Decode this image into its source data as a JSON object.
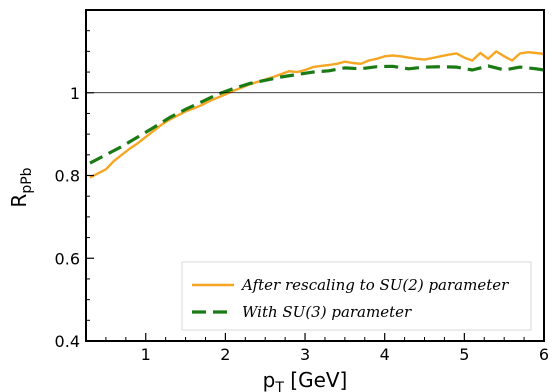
{
  "chart_data": {
    "type": "line",
    "xlabel": "p",
    "xlabel_sub": "T",
    "xlabel_unit": " [GeV]",
    "ylabel": "R",
    "ylabel_sub": "pPb",
    "xlim": [
      0.25,
      6.0
    ],
    "ylim": [
      0.4,
      1.2
    ],
    "x_ticks": [
      1,
      2,
      3,
      4,
      5,
      6
    ],
    "y_ticks": [
      0.4,
      0.6,
      0.8,
      1
    ],
    "y_tick_labels": [
      "0.4",
      "0.6",
      "0.8",
      "1"
    ],
    "reference_line": 1.0,
    "grid": false,
    "legend_position": "bottom-right",
    "series": [
      {
        "name": "After rescaling to SU(2) parameter",
        "color": "#f5a623",
        "style": "solid",
        "x": [
          0.3,
          0.4,
          0.5,
          0.6,
          0.7,
          0.8,
          0.9,
          1.0,
          1.1,
          1.2,
          1.3,
          1.4,
          1.5,
          1.6,
          1.7,
          1.8,
          1.9,
          2.0,
          2.1,
          2.2,
          2.3,
          2.4,
          2.5,
          2.6,
          2.7,
          2.8,
          2.9,
          3.0,
          3.1,
          3.2,
          3.3,
          3.4,
          3.5,
          3.6,
          3.7,
          3.8,
          3.9,
          4.0,
          4.1,
          4.2,
          4.3,
          4.4,
          4.5,
          4.6,
          4.7,
          4.8,
          4.9,
          5.0,
          5.1,
          5.2,
          5.3,
          5.4,
          5.5,
          5.6,
          5.7,
          5.8,
          5.9,
          6.0
        ],
        "y": [
          0.795,
          0.805,
          0.815,
          0.835,
          0.85,
          0.865,
          0.878,
          0.893,
          0.908,
          0.923,
          0.935,
          0.945,
          0.955,
          0.962,
          0.97,
          0.98,
          0.988,
          0.996,
          1.005,
          1.012,
          1.02,
          1.026,
          1.032,
          1.038,
          1.045,
          1.052,
          1.05,
          1.055,
          1.062,
          1.065,
          1.067,
          1.07,
          1.075,
          1.072,
          1.07,
          1.078,
          1.082,
          1.088,
          1.09,
          1.088,
          1.085,
          1.082,
          1.08,
          1.084,
          1.088,
          1.092,
          1.095,
          1.085,
          1.078,
          1.096,
          1.082,
          1.1,
          1.088,
          1.078,
          1.095,
          1.098,
          1.096,
          1.094
        ]
      },
      {
        "name": "With SU(3) parameter",
        "color": "#1a7a14",
        "style": "dashed",
        "x": [
          0.3,
          0.5,
          0.7,
          0.9,
          1.1,
          1.3,
          1.5,
          1.7,
          1.9,
          2.1,
          2.3,
          2.5,
          2.7,
          2.9,
          3.1,
          3.3,
          3.5,
          3.7,
          3.9,
          4.1,
          4.3,
          4.5,
          4.7,
          4.9,
          5.1,
          5.3,
          5.5,
          5.7,
          5.9,
          6.0
        ],
        "y": [
          0.83,
          0.85,
          0.87,
          0.893,
          0.916,
          0.94,
          0.96,
          0.978,
          0.996,
          1.01,
          1.022,
          1.03,
          1.038,
          1.044,
          1.05,
          1.053,
          1.06,
          1.058,
          1.063,
          1.064,
          1.058,
          1.062,
          1.063,
          1.062,
          1.055,
          1.065,
          1.055,
          1.062,
          1.058,
          1.055
        ]
      }
    ]
  }
}
